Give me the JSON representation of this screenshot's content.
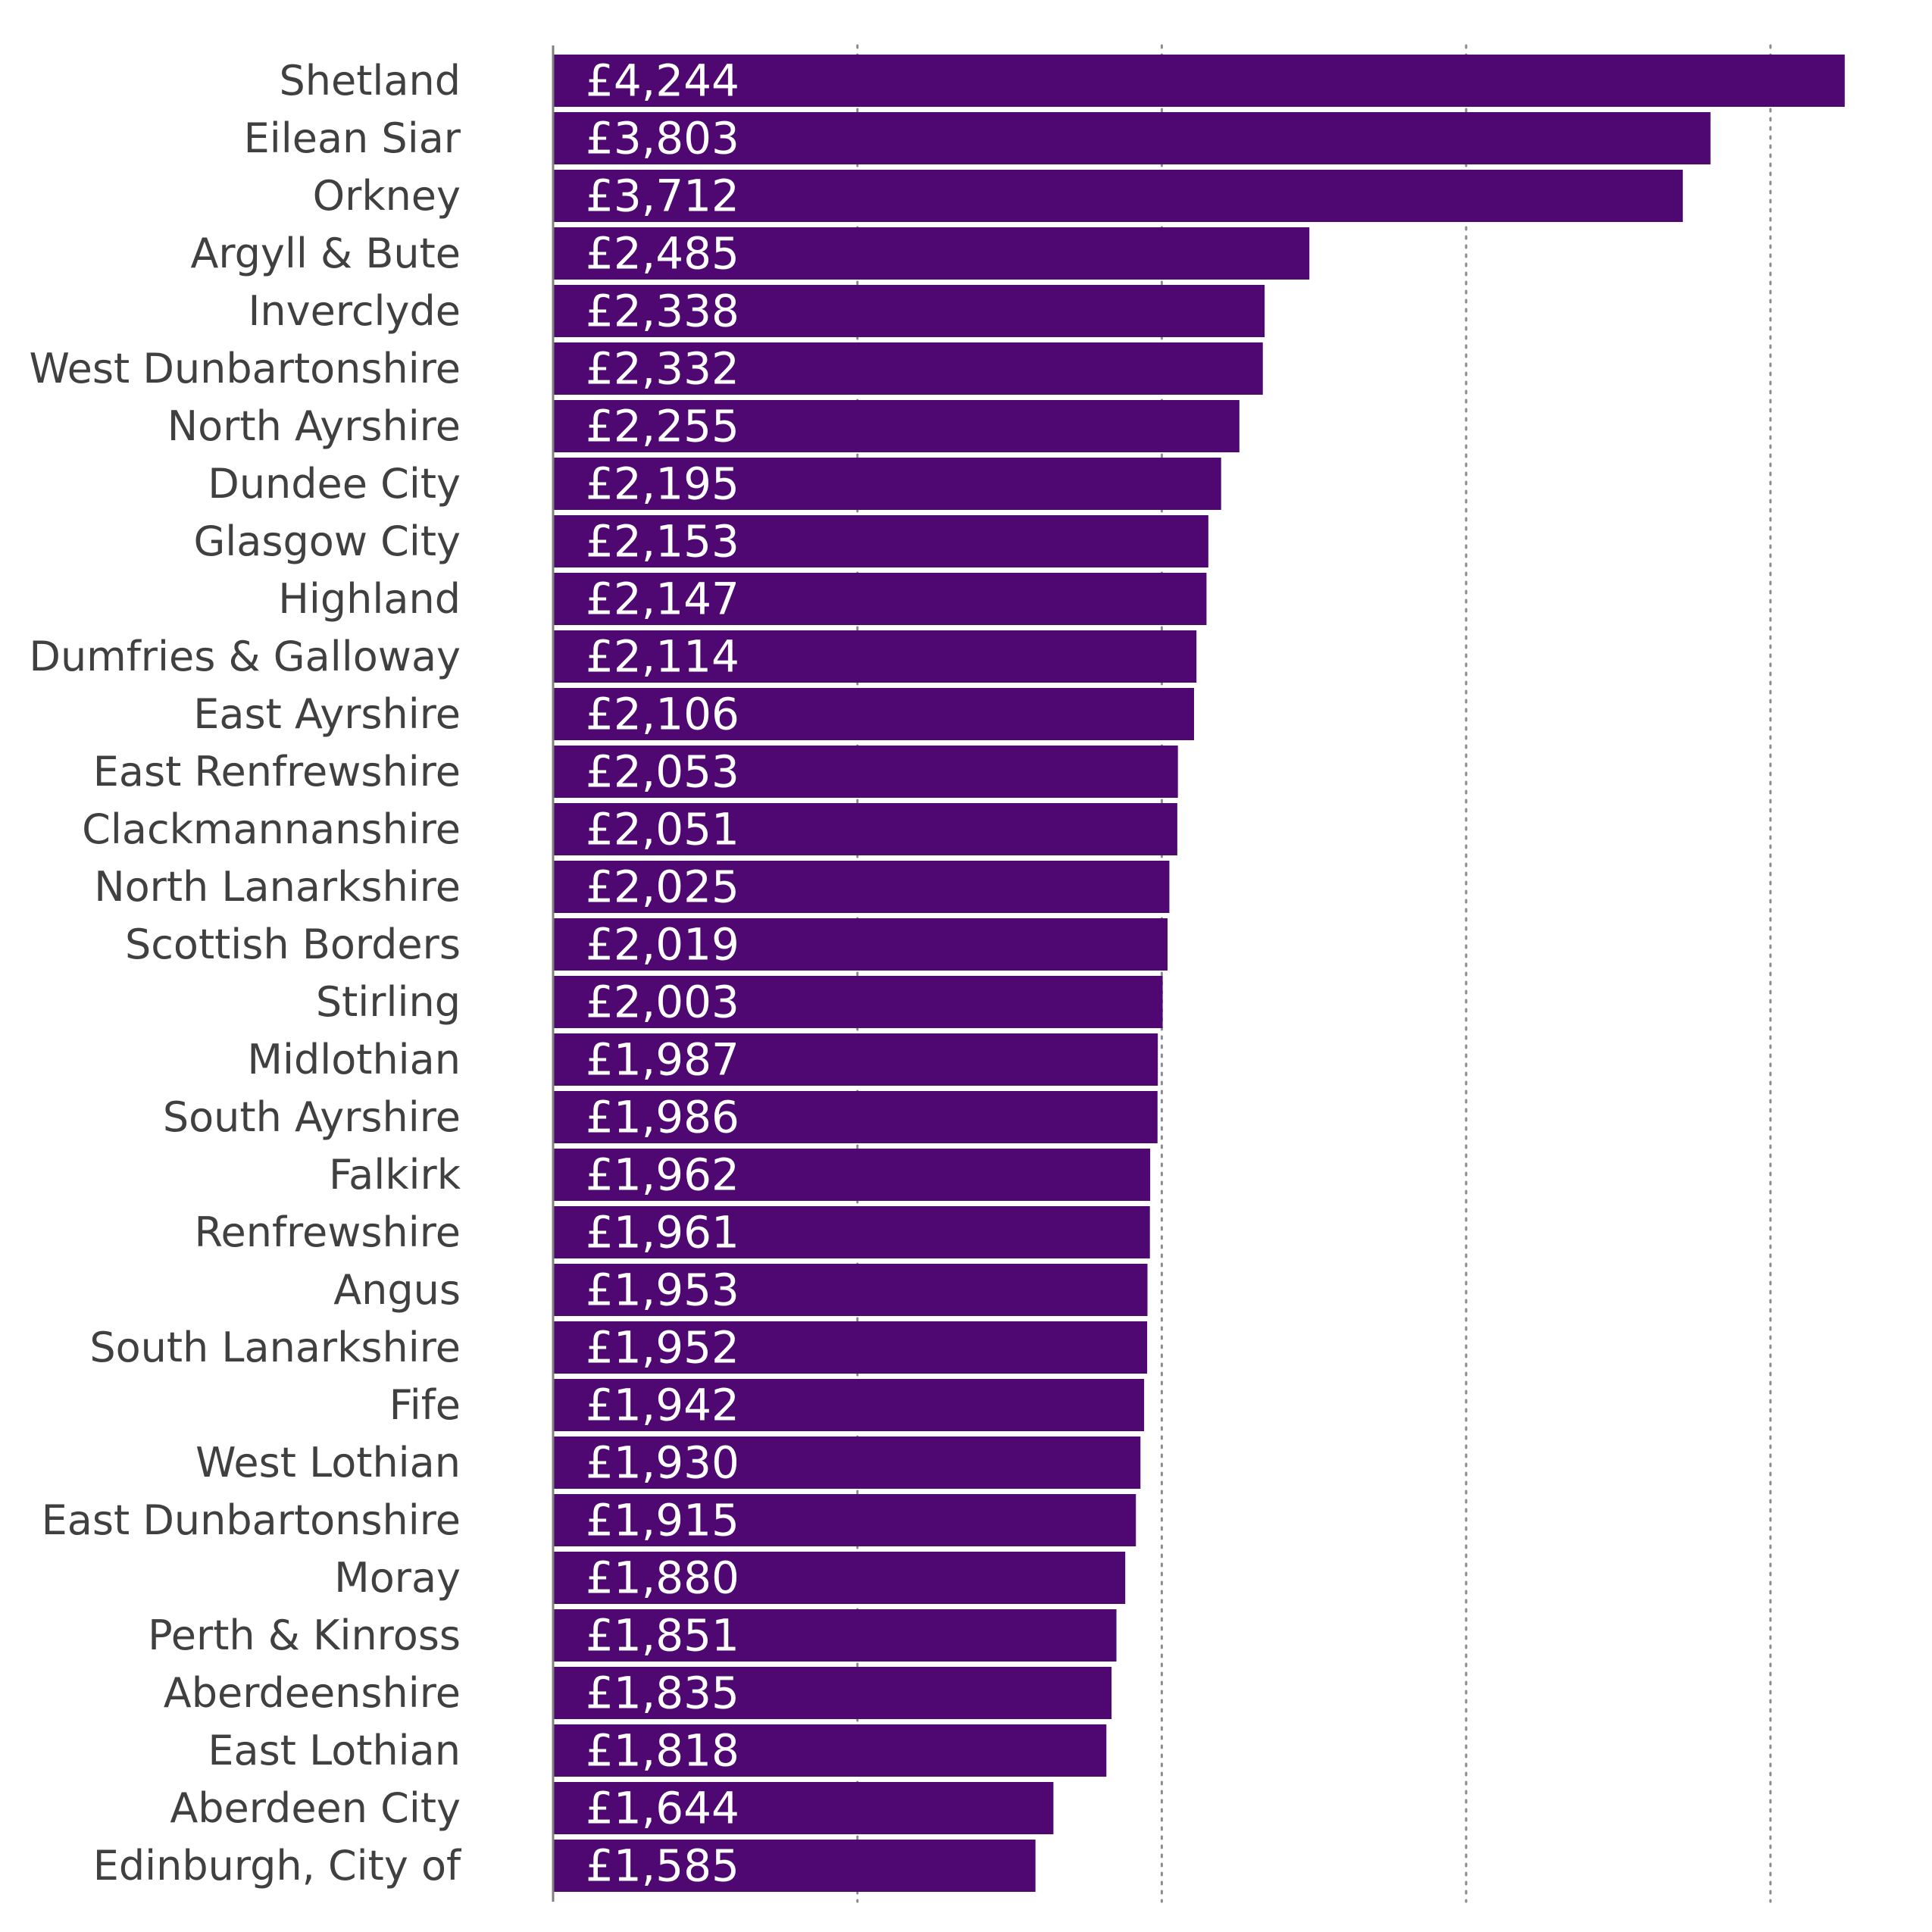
{
  "chart_data": {
    "type": "bar",
    "orientation": "horizontal",
    "categories": [
      "Shetland",
      "Eilean Siar",
      "Orkney",
      "Argyll & Bute",
      "Inverclyde",
      "West Dunbartonshire",
      "North Ayrshire",
      "Dundee City",
      "Glasgow City",
      "Highland",
      "Dumfries & Galloway",
      "East Ayrshire",
      "East Renfrewshire",
      "Clackmannanshire",
      "North Lanarkshire",
      "Scottish Borders",
      "Stirling",
      "Midlothian",
      "South Ayrshire",
      "Falkirk",
      "Renfrewshire",
      "Angus",
      "South Lanarkshire",
      "Fife",
      "West Lothian",
      "East Dunbartonshire",
      "Moray",
      "Perth & Kinross",
      "Aberdeenshire",
      "East Lothian",
      "Aberdeen City",
      "Edinburgh, City of"
    ],
    "values": [
      4244,
      3803,
      3712,
      2485,
      2338,
      2332,
      2255,
      2195,
      2153,
      2147,
      2114,
      2106,
      2053,
      2051,
      2025,
      2019,
      2003,
      1987,
      1986,
      1962,
      1961,
      1953,
      1952,
      1942,
      1930,
      1915,
      1880,
      1851,
      1835,
      1818,
      1644,
      1585
    ],
    "value_labels": [
      "£4,244",
      "£3,803",
      "£3,712",
      "£2,485",
      "£2,338",
      "£2,332",
      "£2,255",
      "£2,195",
      "£2,153",
      "£2,147",
      "£2,114",
      "£2,106",
      "£2,053",
      "£2,051",
      "£2,025",
      "£2,019",
      "£2,003",
      "£1,987",
      "£1,986",
      "£1,962",
      "£1,961",
      "£1,953",
      "£1,952",
      "£1,942",
      "£1,930",
      "£1,915",
      "£1,880",
      "£1,851",
      "£1,835",
      "£1,818",
      "£1,644",
      "£1,585"
    ],
    "xlim": [
      0,
      4400
    ],
    "x_gridlines": [
      1000,
      2000,
      3000,
      4000
    ],
    "grid": "vertical-dotted",
    "legend": "none",
    "bar_color": "#4f0872",
    "label_color": "#ffffff",
    "category_color": "#404040",
    "title": "",
    "xlabel": "",
    "ylabel": ""
  }
}
